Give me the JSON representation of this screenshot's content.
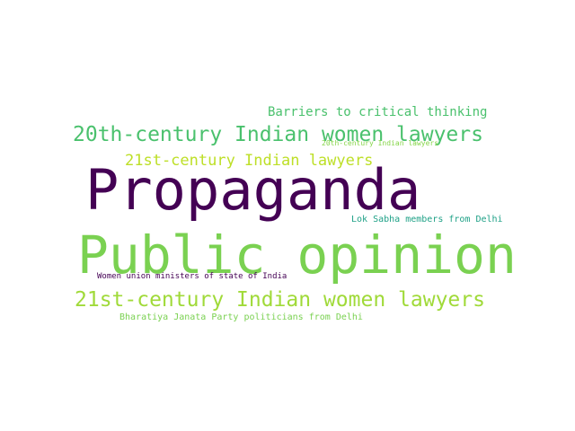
{
  "word_cloud": {
    "words": [
      {
        "text": "Propaganda",
        "color": "#440154"
      },
      {
        "text": "Public opinion",
        "color": "#7ad151"
      },
      {
        "text": "20th-century Indian women lawyers",
        "color": "#4ac16d"
      },
      {
        "text": "21st-century Indian women lawyers",
        "color": "#a0da39"
      },
      {
        "text": "21st-century Indian lawyers",
        "color": "#bddf26"
      },
      {
        "text": "Barriers to critical thinking",
        "color": "#4ac16d"
      },
      {
        "text": "Lok Sabha members from Delhi",
        "color": "#1fa187"
      },
      {
        "text": "Women union ministers of state of India",
        "color": "#440154"
      },
      {
        "text": "Bharatiya Janata Party politicians from Delhi",
        "color": "#7ad151"
      },
      {
        "text": "20th-century Indian lawyers",
        "color": "#86d549"
      }
    ]
  }
}
